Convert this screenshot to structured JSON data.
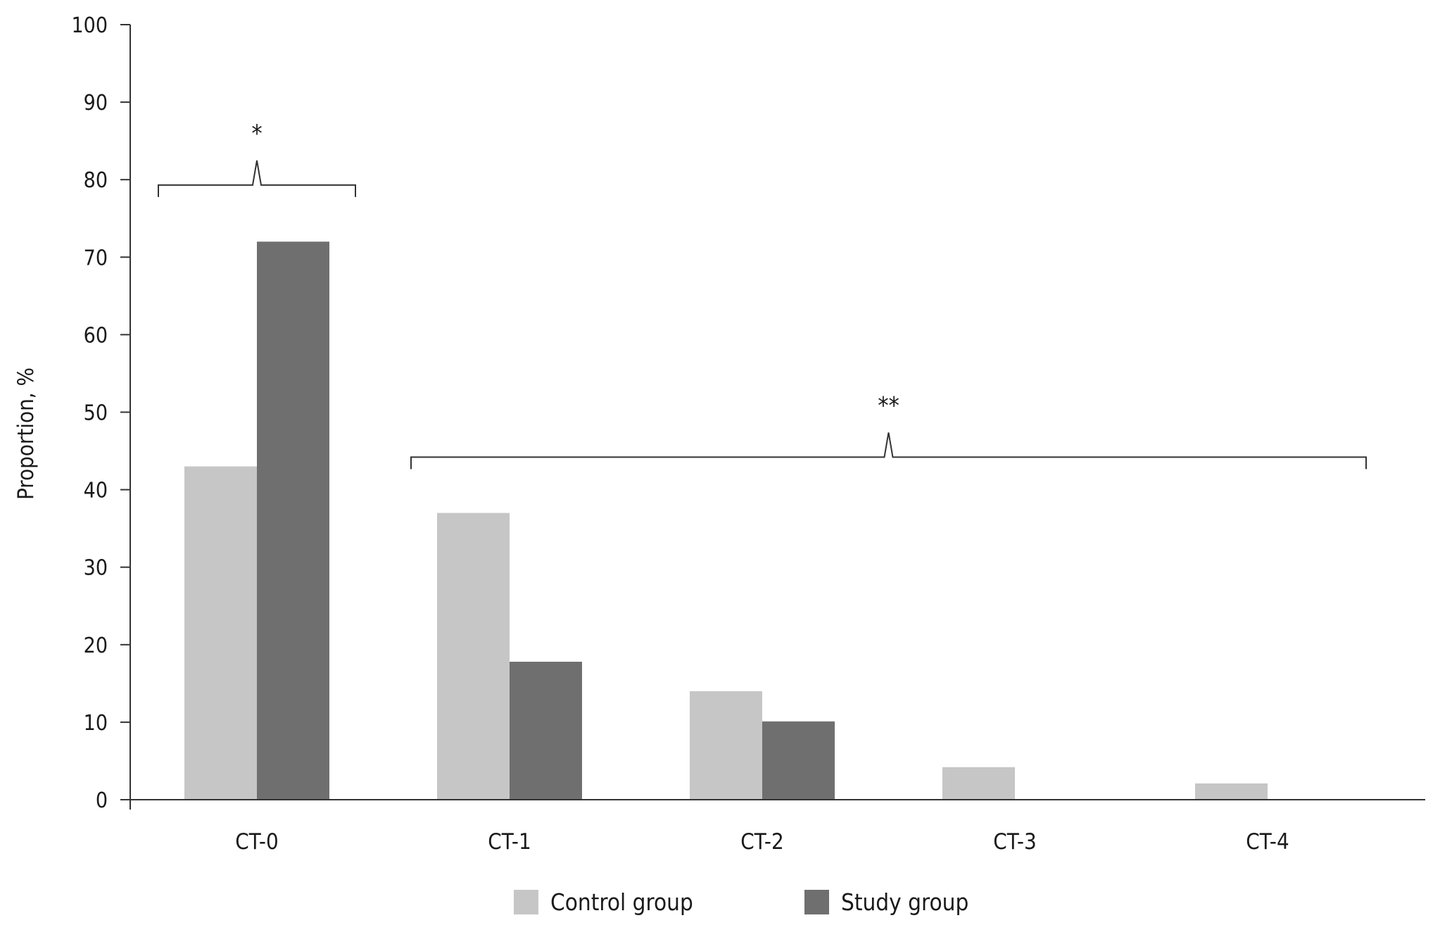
{
  "chart_data": {
    "type": "bar",
    "title": "",
    "xlabel": "",
    "ylabel": "Proportion, %",
    "categories": [
      "CT-0",
      "CT-1",
      "CT-2",
      "CT-3",
      "CT-4"
    ],
    "series": [
      {
        "name": "Control group",
        "color": "#c6c6c6",
        "values": [
          43,
          37,
          14,
          4.2,
          2.1
        ]
      },
      {
        "name": "Study group",
        "color": "#6f6f6f",
        "values": [
          72,
          17.8,
          10.1,
          0,
          0
        ]
      }
    ],
    "ylim": [
      0,
      100
    ],
    "yticks": [
      0,
      10,
      20,
      30,
      40,
      50,
      60,
      70,
      80,
      90,
      100
    ],
    "grid": false,
    "legend": {
      "position": "bottom-center",
      "entries": [
        "Control group",
        "Study group"
      ]
    },
    "annotations": [
      {
        "label": "*",
        "from_category": "CT-0",
        "to_category": "CT-0",
        "y": 79.3
      },
      {
        "label": "**",
        "from_category": "CT-1",
        "to_category": "CT-4",
        "y": 44.2
      }
    ]
  }
}
